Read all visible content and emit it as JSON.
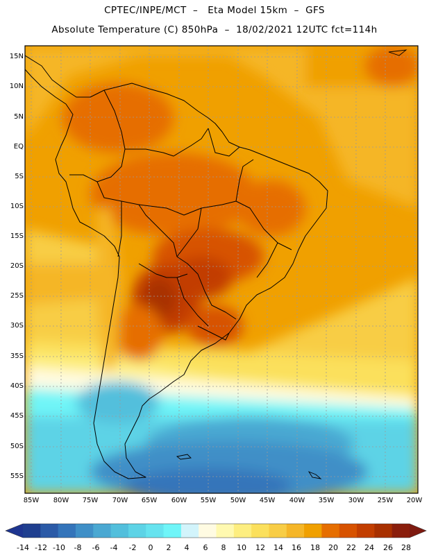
{
  "header": {
    "line1": "CPTEC/INPE/MCT  –   Eta Model 15km  –  GFS",
    "line2": "Absolute Temperature (C) 850hPa  –  18/02/2021 12UTC fct=114h"
  },
  "map": {
    "region": "South America",
    "latitude_labels": [
      "15N",
      "10N",
      "5N",
      "EQ",
      "5S",
      "10S",
      "15S",
      "20S",
      "25S",
      "30S",
      "35S",
      "40S",
      "45S",
      "50S",
      "55S"
    ],
    "longitude_labels": [
      "85W",
      "80W",
      "75W",
      "70W",
      "65W",
      "60W",
      "55W",
      "50W",
      "45W",
      "40W",
      "35W",
      "30W",
      "25W",
      "20W"
    ]
  },
  "colorbar": {
    "labels": [
      "-14",
      "-12",
      "-10",
      "-8",
      "-6",
      "-4",
      "-2",
      "0",
      "2",
      "4",
      "6",
      "8",
      "10",
      "12",
      "14",
      "16",
      "18",
      "20",
      "22",
      "24",
      "26",
      "28"
    ],
    "colors": [
      "#1f3f8f",
      "#2b5aa7",
      "#3474ba",
      "#3f8fc7",
      "#4aa8d2",
      "#52bfdc",
      "#5dd3e6",
      "#66e3ef",
      "#6ff5f8",
      "#d2f4fb",
      "#fffbe2",
      "#fff9b0",
      "#fdee80",
      "#fbe05c",
      "#f8cd45",
      "#f5b628",
      "#f0a000",
      "#e66e00",
      "#d75200",
      "#c23e00",
      "#a83000",
      "#8a1e0c"
    ],
    "left_extension_color": "#1e3590",
    "right_extension_color": "#7e1a10"
  }
}
